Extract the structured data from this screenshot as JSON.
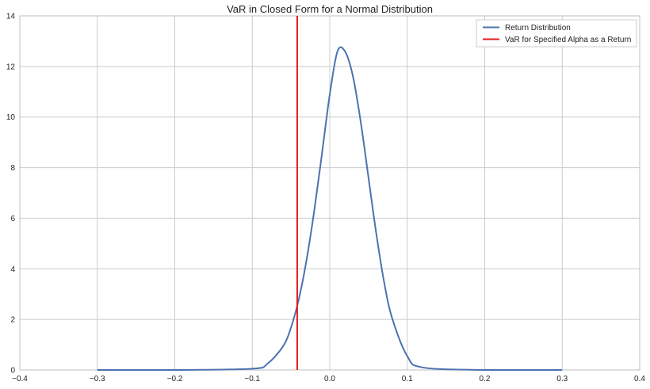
{
  "chart_data": {
    "type": "line",
    "title": "VaR in Closed Form for a Normal Distribution",
    "xlabel": "",
    "ylabel": "",
    "xlim": [
      -0.4,
      0.4
    ],
    "ylim": [
      0,
      14
    ],
    "x_ticks": [
      -0.4,
      -0.3,
      -0.2,
      -0.1,
      0.0,
      0.1,
      0.2,
      0.3,
      0.4
    ],
    "x_tick_labels": [
      "−0.4",
      "−0.3",
      "−0.2",
      "−0.1",
      "0.0",
      "0.1",
      "0.2",
      "0.3",
      "0.4"
    ],
    "y_ticks": [
      0,
      2,
      4,
      6,
      8,
      10,
      12,
      14
    ],
    "y_tick_labels": [
      "0",
      "2",
      "4",
      "6",
      "8",
      "10",
      "12",
      "14"
    ],
    "grid": true,
    "legend_position": "top-right",
    "series": [
      {
        "name": "Return Distribution",
        "kind": "curve",
        "color": "#4c72b0",
        "x": [
          -0.3,
          -0.2,
          -0.1,
          -0.08,
          -0.06,
          -0.05,
          -0.04,
          -0.03,
          -0.02,
          -0.01,
          0.0,
          0.01,
          0.02,
          0.03,
          0.04,
          0.05,
          0.06,
          0.07,
          0.08,
          0.1,
          0.12,
          0.2,
          0.3
        ],
        "y": [
          0.0,
          0.0,
          0.05,
          0.26,
          0.95,
          1.68,
          2.79,
          4.34,
          6.3,
          8.56,
          10.89,
          12.6,
          12.58,
          11.6,
          9.8,
          7.6,
          5.4,
          3.5,
          2.1,
          0.55,
          0.1,
          0.0,
          0.0
        ]
      },
      {
        "name": "VaR for Specified Alpha as a Return",
        "kind": "vertical-line",
        "color": "#e41a1c",
        "x": -0.042
      }
    ]
  }
}
